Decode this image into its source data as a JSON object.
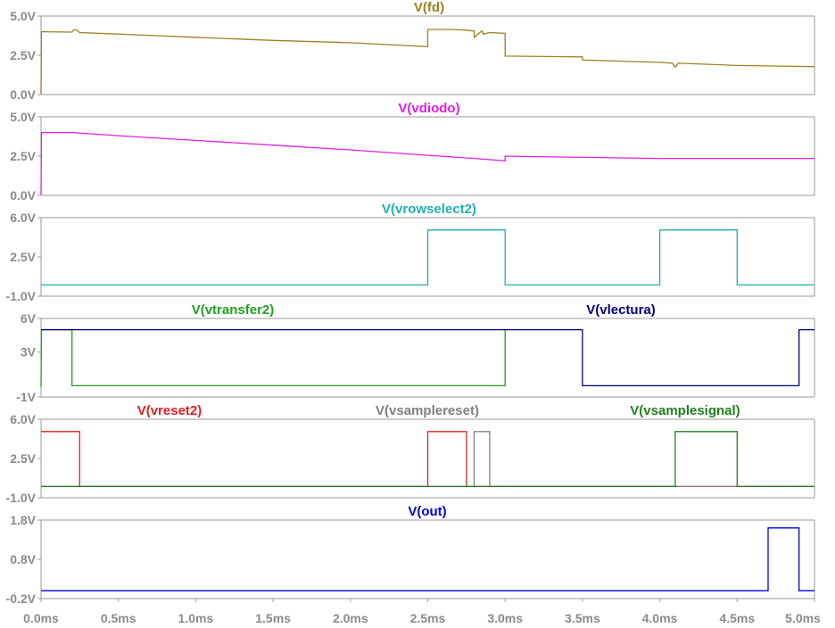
{
  "chart_data": {
    "type": "line",
    "x_unit": "ms",
    "xlim": [
      0,
      5
    ],
    "x_ticks": [
      0,
      0.5,
      1,
      1.5,
      2,
      2.5,
      3,
      3.5,
      4,
      4.5,
      5
    ],
    "x_tick_labels": [
      "0.0ms",
      "0.5ms",
      "1.0ms",
      "1.5ms",
      "2.0ms",
      "2.5ms",
      "3.0ms",
      "3.5ms",
      "4.0ms",
      "4.5ms",
      "5.0ms"
    ],
    "grid": false,
    "panes": [
      {
        "ylim": [
          0,
          5
        ],
        "y_tick_labels": [
          "5.0V",
          "2.5V",
          "0.0V"
        ],
        "y_ticks": [
          5,
          2.5,
          0
        ],
        "series": [
          {
            "name": "V(fd)",
            "color": "#a08020",
            "x": [
              0,
              0.003,
              0.02,
              0.2,
              0.21,
              0.23,
              0.25,
              1.0,
              1.5,
              2.0,
              2.5,
              2.5,
              2.65,
              2.75,
              2.8,
              2.8,
              2.85,
              2.86,
              2.9,
              3.0,
              3.0,
              3.5,
              3.5,
              4.0,
              4.08,
              4.1,
              4.12,
              4.5,
              5.0
            ],
            "y": [
              0.05,
              4.0,
              4.0,
              3.98,
              4.12,
              4.12,
              3.95,
              3.65,
              3.45,
              3.3,
              3.05,
              4.15,
              4.15,
              4.1,
              4.05,
              3.65,
              4.05,
              3.85,
              3.95,
              3.9,
              2.45,
              2.4,
              2.2,
              2.05,
              2.0,
              1.75,
              2.0,
              1.85,
              1.78
            ]
          }
        ]
      },
      {
        "ylim": [
          0,
          5
        ],
        "y_tick_labels": [
          "5.0V",
          "2.5V",
          "0.0V"
        ],
        "y_ticks": [
          5,
          2.5,
          0
        ],
        "series": [
          {
            "name": "V(vdiodo)",
            "color": "#e020e0",
            "x": [
              0,
              0.003,
              0.2,
              0.5,
              1.0,
              1.5,
              2.0,
              2.5,
              2.8,
              3.0,
              3.0,
              3.5,
              4.0,
              5.0
            ],
            "y": [
              0.05,
              4.0,
              4.0,
              3.8,
              3.5,
              3.2,
              2.9,
              2.55,
              2.35,
              2.2,
              2.5,
              2.42,
              2.35,
              2.35
            ]
          }
        ]
      },
      {
        "ylim": [
          -1,
          6
        ],
        "y_tick_labels": [
          "6.0V",
          "2.5V",
          "-1.0V"
        ],
        "y_ticks": [
          6,
          2.5,
          -1
        ],
        "series": [
          {
            "name": "V(vrowselect2)",
            "color": "#20b0b0",
            "x": [
              0,
              2.5,
              2.5,
              3.0,
              3.0,
              4.0,
              4.0,
              4.5,
              4.5,
              5.0
            ],
            "y": [
              0,
              0,
              4.9,
              4.9,
              0,
              0,
              4.9,
              4.9,
              0,
              0
            ]
          }
        ]
      },
      {
        "ylim": [
          -1,
          6
        ],
        "y_tick_labels": [
          "6V",
          "3V",
          "-1V"
        ],
        "y_ticks": [
          6,
          3,
          -1
        ],
        "series": [
          {
            "name": "V(vtransfer2)",
            "color": "#20a020",
            "x": [
              0,
              0.003,
              0.2,
              0.2,
              3.0,
              3.0
            ],
            "y": [
              -0.1,
              5,
              5,
              0,
              0,
              5
            ]
          },
          {
            "name": "V(vlectura)",
            "color": "#000080",
            "x": [
              0,
              3.5,
              3.5,
              4.7,
              4.7,
              4.9,
              4.9,
              5.0
            ],
            "y": [
              5,
              5,
              0,
              0,
              0,
              0,
              5,
              5
            ]
          }
        ]
      },
      {
        "ylim": [
          -1,
          6
        ],
        "y_tick_labels": [
          "6.0V",
          "2.5V",
          "-1.0V"
        ],
        "y_ticks": [
          6,
          2.5,
          -1
        ],
        "series": [
          {
            "name": "V(vreset2)",
            "color": "#e02020",
            "x": [
              0,
              0.25,
              0.25,
              2.5,
              2.5,
              2.75,
              2.75,
              5.0
            ],
            "y": [
              4.9,
              4.9,
              0,
              0,
              4.9,
              4.9,
              0,
              0
            ]
          },
          {
            "name": "V(vsamplereset)",
            "color": "#808080",
            "x": [
              0,
              2.8,
              2.8,
              2.9,
              2.9,
              5.0
            ],
            "y": [
              0,
              0,
              4.9,
              4.9,
              0,
              0
            ]
          },
          {
            "name": "V(vsamplesignal)",
            "color": "#208020",
            "x": [
              0,
              4.1,
              4.1,
              4.5,
              4.5,
              5.0
            ],
            "y": [
              0,
              0,
              4.9,
              4.9,
              0,
              0
            ]
          }
        ]
      },
      {
        "ylim": [
          -0.2,
          1.8
        ],
        "y_tick_labels": [
          "1.8V",
          "0.8V",
          "-0.2V"
        ],
        "y_ticks": [
          1.8,
          0.8,
          -0.2
        ],
        "series": [
          {
            "name": "V(out)",
            "color": "#0000e0",
            "x": [
              0,
              4.7,
              4.7,
              4.9,
              4.9,
              5.0
            ],
            "y": [
              0,
              0,
              1.6,
              1.6,
              0,
              0
            ]
          }
        ]
      }
    ]
  }
}
